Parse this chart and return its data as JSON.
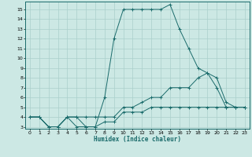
{
  "xlabel": "Humidex (Indice chaleur)",
  "bg_color": "#cce8e4",
  "grid_color": "#aacfcb",
  "line_color": "#1a6b6b",
  "xlim": [
    -0.5,
    23.5
  ],
  "ylim": [
    2.8,
    15.8
  ],
  "xticks": [
    0,
    1,
    2,
    3,
    4,
    5,
    6,
    7,
    8,
    9,
    10,
    11,
    12,
    13,
    14,
    15,
    16,
    17,
    18,
    19,
    20,
    21,
    22,
    23
  ],
  "yticks": [
    3,
    4,
    5,
    6,
    7,
    8,
    9,
    10,
    11,
    12,
    13,
    14,
    15
  ],
  "series1": {
    "x": [
      0,
      1,
      2,
      3,
      4,
      5,
      6,
      7,
      8,
      9,
      10,
      11,
      12,
      13,
      14,
      15,
      16,
      17,
      18,
      19,
      20,
      21,
      22,
      23
    ],
    "y": [
      4,
      4,
      3,
      3,
      4,
      4,
      3,
      3,
      6,
      12,
      15,
      15,
      15,
      15,
      15,
      15.5,
      13,
      11,
      9,
      8.5,
      7,
      5,
      5,
      5
    ]
  },
  "series2": {
    "x": [
      0,
      1,
      2,
      3,
      4,
      5,
      6,
      7,
      8,
      9,
      10,
      11,
      12,
      13,
      14,
      15,
      16,
      17,
      18,
      19,
      20,
      21,
      22,
      23
    ],
    "y": [
      4,
      4,
      3,
      3,
      4,
      4,
      4,
      4,
      4,
      4,
      5,
      5,
      5.5,
      6,
      6,
      7,
      7,
      7,
      8,
      8.5,
      8,
      5.5,
      5,
      5
    ]
  },
  "series3": {
    "x": [
      0,
      1,
      2,
      3,
      4,
      5,
      6,
      7,
      8,
      9,
      10,
      11,
      12,
      13,
      14,
      15,
      16,
      17,
      18,
      19,
      20,
      21,
      22,
      23
    ],
    "y": [
      4,
      4,
      3,
      3,
      4,
      3,
      3,
      3,
      3.5,
      3.5,
      4.5,
      4.5,
      4.5,
      5,
      5,
      5,
      5,
      5,
      5,
      5,
      5,
      5,
      5,
      5
    ]
  }
}
